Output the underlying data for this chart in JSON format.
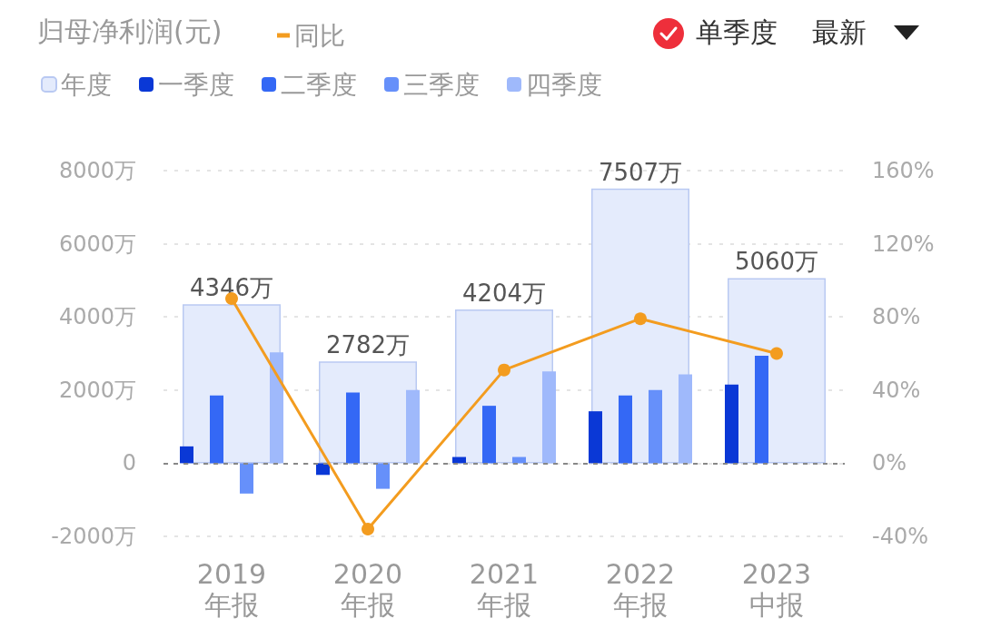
{
  "chart_data": {
    "type": "bar",
    "title": "归母净利润(元)",
    "categories": [
      "2019\n年报",
      "2020\n年报",
      "2021\n年报",
      "2022\n年报",
      "2023\n中报"
    ],
    "series": [
      {
        "name": "年度",
        "color": "#e4ebfc",
        "values": [
          4346,
          2782,
          4204,
          7507,
          5060
        ],
        "value_labels": [
          "4346万",
          "2782万",
          "4204万",
          "7507万",
          "5060万"
        ]
      },
      {
        "name": "一季度",
        "color": "#0a38d6",
        "values": [
          460,
          -320,
          170,
          1420,
          2150
        ]
      },
      {
        "name": "二季度",
        "color": "#3468f5",
        "values": [
          1850,
          1930,
          1570,
          1850,
          2940
        ]
      },
      {
        "name": "三季度",
        "color": "#6690fa",
        "values": [
          -830,
          -700,
          170,
          2000,
          null
        ]
      },
      {
        "name": "四季度",
        "color": "#9fb9fb",
        "values": [
          3030,
          2000,
          2510,
          2430,
          null
        ]
      },
      {
        "name": "同比",
        "type": "line",
        "axis": "y2",
        "color": "#f39c1f",
        "values": [
          90,
          -36,
          51,
          79,
          60
        ]
      }
    ],
    "ylim": [
      -2000,
      8000
    ],
    "yticks": [
      {
        "value": -2000,
        "label": "-2000万"
      },
      {
        "value": 0,
        "label": "0"
      },
      {
        "value": 2000,
        "label": "2000万"
      },
      {
        "value": 4000,
        "label": "4000万"
      },
      {
        "value": 6000,
        "label": "6000万"
      },
      {
        "value": 8000,
        "label": "8000万"
      }
    ],
    "y2lim": [
      -40,
      160
    ],
    "y2ticks": [
      {
        "value": -40,
        "label": "-40%"
      },
      {
        "value": 0,
        "label": "0%"
      },
      {
        "value": 40,
        "label": "40%"
      },
      {
        "value": 80,
        "label": "80%"
      },
      {
        "value": 120,
        "label": "120%"
      },
      {
        "value": 160,
        "label": "160%"
      }
    ],
    "ref_lines": [
      {
        "axis": "y",
        "value": 0,
        "color": "#888888",
        "line_style": "dashed"
      }
    ],
    "grid": "y",
    "legend": "top left",
    "marker": "circle",
    "annotations": [
      "单季度",
      "最新"
    ]
  }
}
